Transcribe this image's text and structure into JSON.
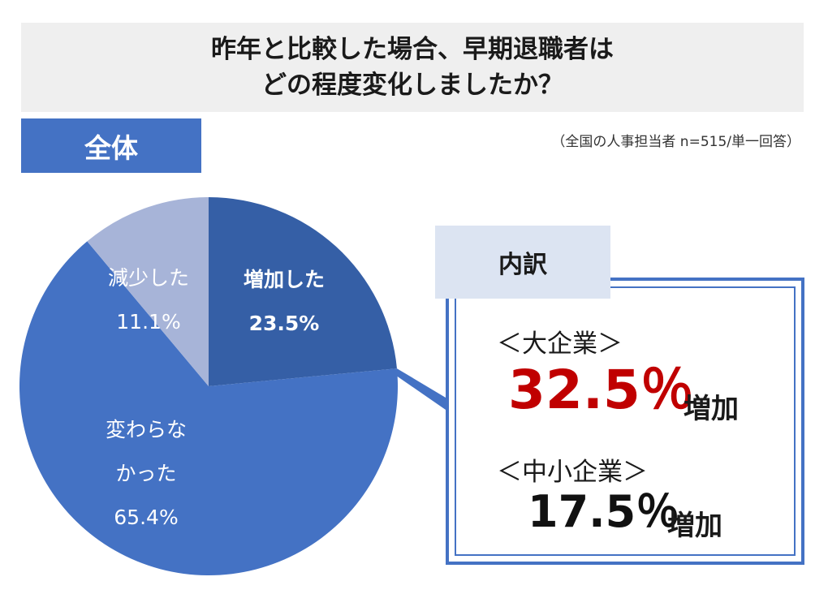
{
  "title": {
    "line1": "昨年と比較した場合、早期退職者は",
    "line2": "どの程度変化しましたか？"
  },
  "scope_label": "全体",
  "note": "（全国の人事担当者 n=515/単一回答）",
  "chart_data": {
    "type": "pie",
    "title": "昨年と比較した場合、早期退職者はどの程度変化しましたか？",
    "slices": [
      {
        "label": "増加した",
        "value": 23.5,
        "display": "23.5%",
        "color": "#355fa6"
      },
      {
        "label": "変わらなかった",
        "label_lines": [
          "変わらな",
          "かった"
        ],
        "value": 65.4,
        "display": "65.4%",
        "color": "#4472c4"
      },
      {
        "label": "減少した",
        "value": 11.1,
        "display": "11.1%",
        "color": "#a7b4d8"
      }
    ],
    "start_angle": "12 o'clock",
    "direction": "clockwise",
    "legend": "none"
  },
  "breakdown": {
    "header": "内訳",
    "large": {
      "label": "＜大企業＞",
      "value": "32.5％",
      "suffix": "増加",
      "color": "#c00000"
    },
    "small": {
      "label": "＜中小企業＞",
      "value": "17.5％",
      "suffix": "増加",
      "color": "#111111"
    }
  },
  "colors": {
    "accent": "#4472c4",
    "increase": "#355fa6",
    "decrease": "#a7b4d8",
    "header_bg": "#dce4f2",
    "highlight": "#c00000"
  }
}
